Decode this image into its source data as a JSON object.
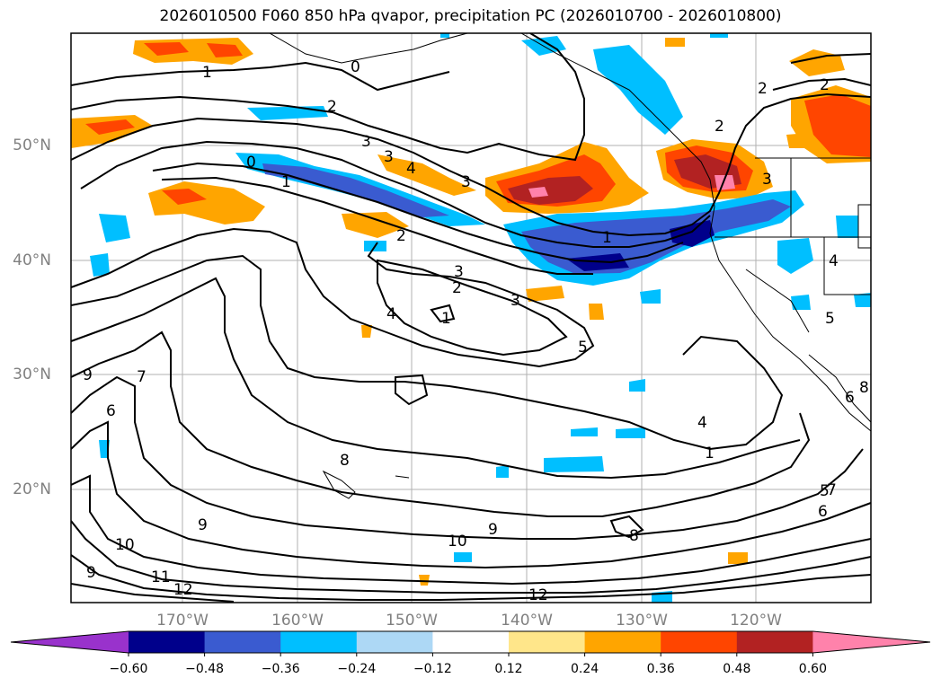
{
  "title": "2026010500 F060 850 hPa qvapor, precipitation PC (2026010700 - 2026010800)",
  "lon_labels": [
    "170°W",
    "160°W",
    "150°W",
    "140°W",
    "130°W",
    "120°W"
  ],
  "lat_labels": [
    "50°N",
    "40°N",
    "30°N",
    "20°N"
  ],
  "colorbar": {
    "tick_labels": [
      "−0.60",
      "−0.48",
      "−0.36",
      "−0.24",
      "−0.12",
      "0.12",
      "0.24",
      "0.36",
      "0.48",
      "0.60"
    ],
    "colors": [
      "#9932cc",
      "#00008b",
      "#3a5bd0",
      "#00bfff",
      "#add8f5",
      "#ffffff",
      "#ffe68a",
      "#ffa500",
      "#ff4500",
      "#b22222",
      "#ff82ab"
    ]
  },
  "contour_labels": [
    "1",
    "2",
    "3",
    "3",
    "3",
    "4",
    "1",
    "2",
    "3",
    "2",
    "1",
    "3",
    "3",
    "2",
    "4",
    "1",
    "5",
    "1",
    "2",
    "2",
    "0",
    "6",
    "7",
    "8",
    "9",
    "10",
    "11",
    "12",
    "12",
    "10",
    "9",
    "9",
    "8",
    "7",
    "4",
    "5",
    "6",
    "5",
    "4",
    "6",
    "8",
    "9",
    "0"
  ]
}
